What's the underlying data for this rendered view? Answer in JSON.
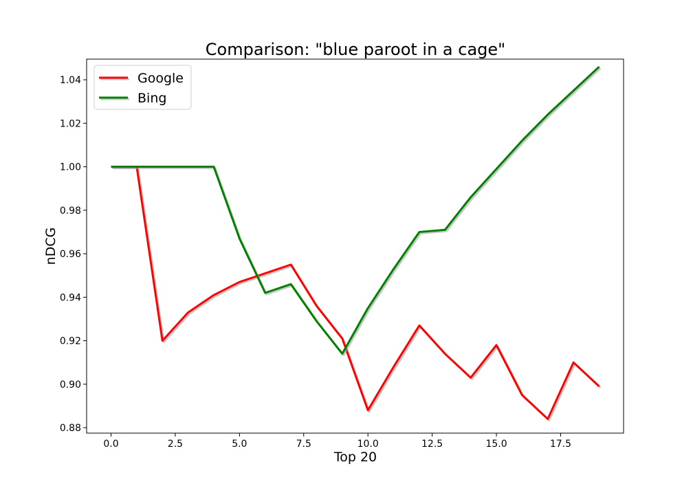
{
  "chart_data": {
    "type": "line",
    "title": "Comparison: \"blue paroot in a cage\"",
    "xlabel": "Top 20",
    "ylabel": "nDCG",
    "xlim": [
      -0.95,
      19.95
    ],
    "ylim": [
      0.8775,
      1.0495
    ],
    "x_ticks": [
      0.0,
      2.5,
      5.0,
      7.5,
      10.0,
      12.5,
      15.0,
      17.5
    ],
    "x_tick_labels": [
      "0.0",
      "2.5",
      "5.0",
      "7.5",
      "10.0",
      "12.5",
      "15.0",
      "17.5"
    ],
    "y_ticks": [
      0.88,
      0.9,
      0.92,
      0.94,
      0.96,
      0.98,
      1.0,
      1.02,
      1.04
    ],
    "y_tick_labels": [
      "0.88",
      "0.90",
      "0.92",
      "0.94",
      "0.96",
      "0.98",
      "1.00",
      "1.02",
      "1.04"
    ],
    "grid": false,
    "legend_position": "top-left",
    "x": [
      0,
      1,
      2,
      3,
      4,
      5,
      6,
      7,
      8,
      9,
      10,
      11,
      12,
      13,
      14,
      15,
      16,
      17,
      18,
      19
    ],
    "series": [
      {
        "name": "Google",
        "color": "#ff0000",
        "values": [
          1.0,
          1.0,
          0.92,
          0.933,
          0.941,
          0.947,
          0.951,
          0.955,
          0.936,
          0.921,
          0.888,
          0.908,
          0.927,
          0.914,
          0.903,
          0.918,
          0.895,
          0.884,
          0.91,
          0.899
        ]
      },
      {
        "name": "Bing",
        "color": "#008000",
        "values": [
          1.0,
          1.0,
          1.0,
          1.0,
          1.0,
          0.967,
          0.942,
          0.946,
          0.929,
          0.914,
          0.935,
          0.953,
          0.97,
          0.971,
          0.986,
          0.999,
          1.012,
          1.024,
          1.035,
          1.046
        ]
      }
    ]
  }
}
